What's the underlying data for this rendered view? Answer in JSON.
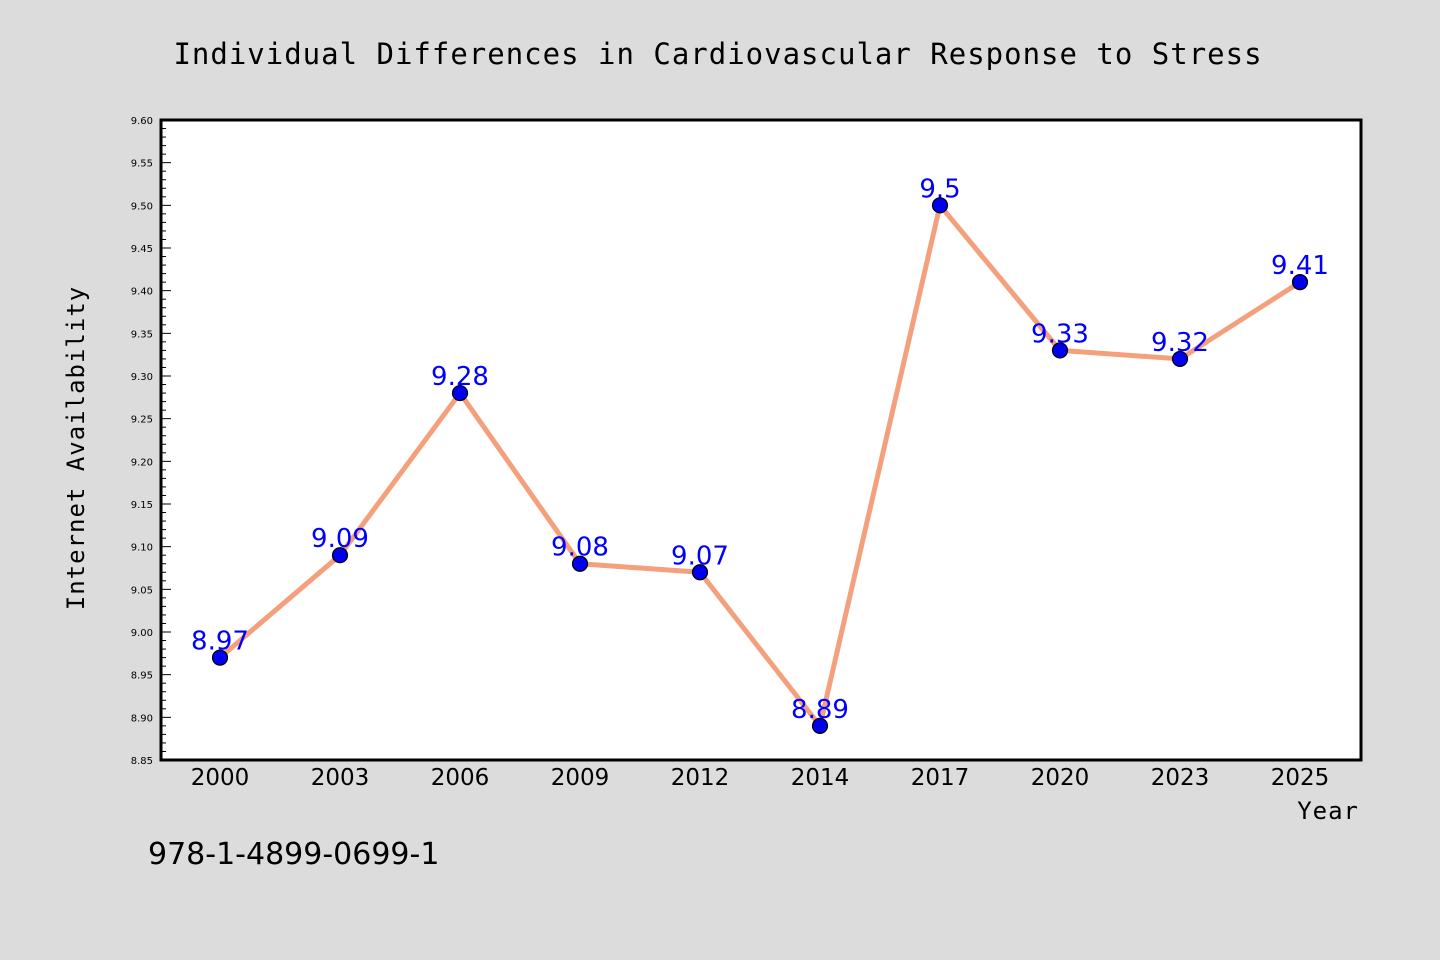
{
  "chart_data": {
    "type": "line",
    "title": "Individual Differences in Cardiovascular Response to Stress",
    "xlabel": "Year",
    "ylabel": "Internet Availability",
    "categories": [
      "2000",
      "2003",
      "2006",
      "2009",
      "2012",
      "2014",
      "2017",
      "2020",
      "2023",
      "2025"
    ],
    "series": [
      {
        "values": [
          8.97,
          9.09,
          9.28,
          9.08,
          9.07,
          8.89,
          9.5,
          9.33,
          9.32,
          9.41
        ],
        "labels": [
          "8.97",
          "9.09",
          "9.28",
          "9.08",
          "9.07",
          "8.89",
          "9.5",
          "9.33",
          "9.32",
          "9.41"
        ],
        "line_color": "#f4a07c",
        "marker_color": "#0000ee"
      }
    ],
    "ylim": [
      8.85,
      9.6
    ],
    "yticks": [
      8.85,
      8.9,
      8.95,
      9.0,
      9.05,
      9.1,
      9.15,
      9.2,
      9.25,
      9.3,
      9.35,
      9.4,
      9.45,
      9.5,
      9.55,
      9.6
    ],
    "ytick_labels": [
      "8.85",
      "8.90",
      "8.95",
      "9.00",
      "9.05",
      "9.10",
      "9.15",
      "9.20",
      "9.25",
      "9.30",
      "9.35",
      "9.40",
      "9.45",
      "9.50",
      "9.55",
      "9.60"
    ],
    "grid": false,
    "legend": "none",
    "data_label_color": "#0000ff"
  },
  "footnote": "978-1-4899-0699-1",
  "colors": {
    "background": "#dcdcdc",
    "plot_background": "#ffffff"
  }
}
